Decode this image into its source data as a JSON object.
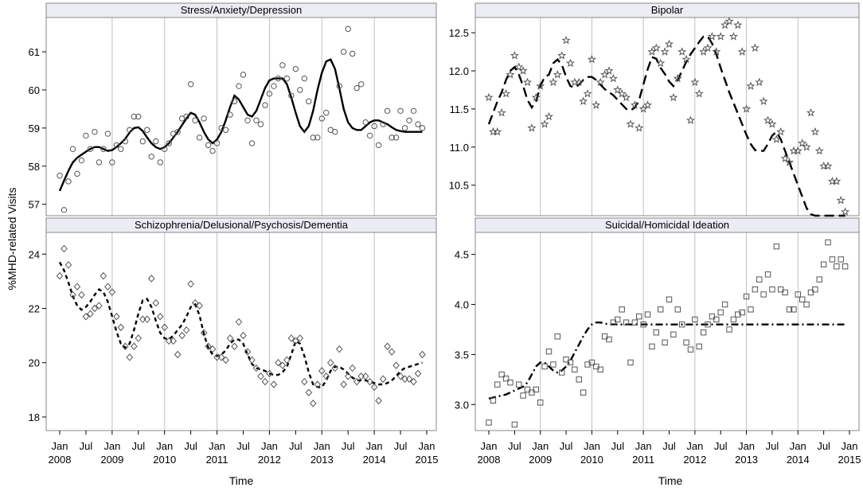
{
  "figure": {
    "ylabel": "%MHD-related Visits",
    "xlabel": "Time"
  },
  "x_ticks": {
    "months": [
      "Jan",
      "Jul",
      "Jan",
      "Jul",
      "Jan",
      "Jul",
      "Jan",
      "Jul",
      "Jan",
      "Jul",
      "Jan",
      "Jul",
      "Jan",
      "Jul",
      "Jan"
    ],
    "years": [
      "2008",
      "2009",
      "2010",
      "2011",
      "2012",
      "2013",
      "2014",
      "2015"
    ]
  },
  "colors": {
    "line": "#000000",
    "marker": "#555555",
    "grid": "#c0c0c0",
    "header": "#ececf5",
    "frame": "#888888"
  },
  "chart_data": [
    {
      "type": "scatter",
      "title": "Stress/Anxiety/Depression",
      "marker": "circle",
      "linestyle": "solid",
      "yticks": [
        57,
        58,
        59,
        60,
        61
      ],
      "ylim": [
        56.7,
        61.9
      ],
      "points": [
        57.75,
        56.85,
        57.6,
        58.45,
        57.8,
        58.15,
        58.8,
        58.45,
        58.9,
        58.1,
        58.45,
        58.85,
        58.1,
        58.55,
        58.45,
        58.65,
        58.95,
        59.3,
        59.3,
        58.65,
        58.95,
        58.25,
        58.65,
        58.1,
        58.45,
        58.6,
        58.85,
        58.9,
        59.25,
        59.3,
        60.15,
        59.2,
        58.75,
        59.25,
        58.55,
        58.4,
        58.6,
        59.0,
        58.95,
        59.35,
        59.7,
        60.1,
        60.4,
        59.2,
        58.6,
        59.2,
        59.1,
        59.6,
        59.9,
        60.1,
        60.3,
        60.65,
        60.3,
        59.85,
        60.55,
        60.0,
        60.3,
        59.7,
        58.75,
        58.75,
        59.25,
        59.4,
        58.95,
        58.9,
        60.1,
        61.0,
        61.6,
        60.95,
        60.05,
        60.15,
        59.15,
        58.8,
        59.05,
        58.55,
        59.1,
        59.45,
        58.75,
        58.75,
        59.45,
        59.0,
        59.2,
        59.45,
        59.1,
        59.0
      ],
      "fit": [
        57.35,
        57.62,
        57.88,
        58.1,
        58.22,
        58.3,
        58.38,
        58.45,
        58.5,
        58.5,
        58.45,
        58.4,
        58.42,
        58.5,
        58.6,
        58.72,
        58.88,
        59.0,
        59.02,
        58.92,
        58.75,
        58.6,
        58.5,
        58.45,
        58.5,
        58.6,
        58.75,
        58.9,
        59.08,
        59.25,
        59.4,
        59.35,
        59.15,
        58.9,
        58.7,
        58.6,
        58.7,
        58.9,
        59.2,
        59.55,
        59.85,
        59.75,
        59.55,
        59.35,
        59.3,
        59.45,
        59.75,
        60.05,
        60.25,
        60.3,
        60.3,
        60.3,
        60.15,
        59.8,
        59.4,
        59.05,
        58.9,
        59.05,
        59.45,
        60.0,
        60.45,
        60.75,
        60.8,
        60.55,
        60.05,
        59.5,
        59.15,
        59.0,
        58.95,
        58.95,
        59.05,
        59.15,
        59.2,
        59.2,
        59.15,
        59.1,
        59.02,
        58.95,
        58.92,
        58.9,
        58.9,
        58.9,
        58.9,
        58.9
      ]
    },
    {
      "type": "scatter",
      "title": "Bipolar",
      "marker": "star",
      "linestyle": "longdash",
      "yticks": [
        10.5,
        11.0,
        11.5,
        12.0,
        12.5
      ],
      "ylim": [
        10.1,
        12.7
      ],
      "points": [
        11.65,
        11.2,
        11.2,
        11.45,
        11.7,
        11.95,
        12.2,
        12.05,
        12.0,
        11.85,
        11.25,
        11.65,
        11.8,
        11.3,
        11.4,
        11.85,
        11.95,
        12.2,
        12.4,
        12.1,
        11.85,
        11.85,
        11.6,
        11.7,
        12.15,
        11.55,
        11.85,
        11.95,
        12.0,
        11.9,
        11.75,
        11.7,
        11.65,
        11.3,
        11.55,
        11.25,
        11.5,
        11.55,
        12.25,
        12.3,
        12.1,
        12.25,
        12.35,
        11.65,
        11.9,
        12.25,
        12.15,
        11.35,
        11.85,
        11.7,
        12.25,
        12.3,
        12.45,
        12.25,
        12.45,
        12.6,
        12.65,
        12.45,
        12.6,
        12.25,
        11.5,
        11.8,
        12.3,
        11.85,
        11.6,
        11.35,
        11.3,
        11.1,
        11.2,
        10.85,
        10.8,
        10.95,
        10.95,
        11.05,
        11.0,
        11.45,
        11.2,
        10.95,
        10.75,
        10.75,
        10.55,
        10.55,
        10.3,
        10.15
      ],
      "fit": [
        11.3,
        11.45,
        11.6,
        11.72,
        11.88,
        12.0,
        12.05,
        11.95,
        11.8,
        11.62,
        11.52,
        11.6,
        11.8,
        11.92,
        11.95,
        12.1,
        12.15,
        12.08,
        11.92,
        11.8,
        11.78,
        11.82,
        11.88,
        11.92,
        11.92,
        11.88,
        11.82,
        11.76,
        11.72,
        11.68,
        11.62,
        11.56,
        11.5,
        11.48,
        11.52,
        11.62,
        11.82,
        12.02,
        12.18,
        12.16,
        12.04,
        11.96,
        11.86,
        11.8,
        11.88,
        12.0,
        12.12,
        12.22,
        12.3,
        12.38,
        12.45,
        12.45,
        12.36,
        12.22,
        12.04,
        11.88,
        11.72,
        11.58,
        11.44,
        11.3,
        11.16,
        11.04,
        10.96,
        10.95,
        10.95,
        11.04,
        11.15,
        11.2,
        11.1,
        10.95,
        10.8,
        10.65,
        10.5,
        10.35,
        10.2,
        10.12,
        10.1,
        10.1,
        10.1,
        10.1,
        10.1,
        10.1,
        10.1,
        10.1
      ]
    },
    {
      "type": "scatter",
      "title": "Schizophrenia/Delusional/Psychosis/Dementia",
      "marker": "diamond",
      "linestyle": "dashed",
      "yticks": [
        18,
        20,
        22,
        24
      ],
      "ylim": [
        17.5,
        24.8
      ],
      "points": [
        23.2,
        24.2,
        23.6,
        22.5,
        22.8,
        22.5,
        21.7,
        21.8,
        22.0,
        22.1,
        23.2,
        22.8,
        22.6,
        21.7,
        21.3,
        20.6,
        20.2,
        20.6,
        20.9,
        21.6,
        21.6,
        23.1,
        22.2,
        21.7,
        21.3,
        20.8,
        20.8,
        20.3,
        21.0,
        21.2,
        22.9,
        22.2,
        22.1,
        21.1,
        20.6,
        20.5,
        20.2,
        20.2,
        20.1,
        20.9,
        20.6,
        21.5,
        21.0,
        20.4,
        20.1,
        19.8,
        19.5,
        19.3,
        19.6,
        19.2,
        20.0,
        19.9,
        20.1,
        20.9,
        20.8,
        20.9,
        19.3,
        18.9,
        18.5,
        19.2,
        19.7,
        19.5,
        20.0,
        19.8,
        20.5,
        19.2,
        19.5,
        19.8,
        19.3,
        19.5,
        19.5,
        19.3,
        19.1,
        18.6,
        19.4,
        20.6,
        20.4,
        19.9,
        19.5,
        19.4,
        19.4,
        19.3,
        19.6,
        20.3
      ],
      "fit": [
        23.7,
        23.4,
        22.95,
        22.45,
        22.1,
        21.95,
        22.05,
        22.25,
        22.5,
        22.7,
        22.6,
        22.25,
        21.7,
        21.15,
        20.7,
        20.55,
        20.7,
        21.2,
        21.8,
        22.3,
        22.35,
        22.05,
        21.55,
        21.1,
        20.9,
        20.85,
        21.0,
        21.2,
        21.4,
        21.7,
        22.05,
        22.15,
        21.75,
        21.05,
        20.55,
        20.3,
        20.25,
        20.3,
        20.45,
        20.7,
        20.85,
        20.85,
        20.7,
        20.3,
        19.95,
        19.8,
        19.75,
        19.7,
        19.6,
        19.55,
        19.55,
        19.65,
        19.85,
        20.3,
        20.8,
        20.7,
        20.25,
        19.65,
        19.2,
        19.1,
        19.1,
        19.35,
        19.7,
        19.85,
        19.85,
        19.75,
        19.6,
        19.45,
        19.35,
        19.35,
        19.35,
        19.3,
        19.25,
        19.2,
        19.2,
        19.25,
        19.35,
        19.5,
        19.7,
        19.8,
        19.85,
        19.9,
        19.95,
        20.0
      ]
    },
    {
      "type": "scatter",
      "title": "Suicidal/Homicidal Ideation",
      "marker": "square",
      "linestyle": "dashdot",
      "yticks": [
        3.0,
        3.5,
        4.0,
        4.5
      ],
      "ylim": [
        2.74,
        4.72
      ],
      "points": [
        2.82,
        3.04,
        3.2,
        3.3,
        3.26,
        3.22,
        2.8,
        3.2,
        3.09,
        3.15,
        3.12,
        3.15,
        3.02,
        3.38,
        3.53,
        3.4,
        3.68,
        3.32,
        3.45,
        3.42,
        3.35,
        3.25,
        3.12,
        3.4,
        3.42,
        3.38,
        3.35,
        3.68,
        3.65,
        3.82,
        3.85,
        3.95,
        3.82,
        3.42,
        3.82,
        3.88,
        3.8,
        3.9,
        3.58,
        3.72,
        3.95,
        3.62,
        4.05,
        3.7,
        3.95,
        3.8,
        3.62,
        3.55,
        3.85,
        3.58,
        3.72,
        3.8,
        3.88,
        3.85,
        3.92,
        4.0,
        3.75,
        3.85,
        3.9,
        3.92,
        4.08,
        3.95,
        4.15,
        4.25,
        4.1,
        4.3,
        4.15,
        4.58,
        4.15,
        4.12,
        3.95,
        3.95,
        4.1,
        4.05,
        4.0,
        4.12,
        4.15,
        4.25,
        4.4,
        4.62,
        4.45,
        4.38,
        4.45,
        4.38
      ],
      "fit": [
        3.06,
        3.07,
        3.08,
        3.09,
        3.1,
        3.12,
        3.14,
        3.16,
        3.18,
        3.22,
        3.3,
        3.38,
        3.42,
        3.42,
        3.38,
        3.34,
        3.32,
        3.34,
        3.38,
        3.44,
        3.52,
        3.6,
        3.68,
        3.75,
        3.8,
        3.82,
        3.82,
        3.81,
        3.8,
        3.8,
        3.8,
        3.8,
        3.8,
        3.8,
        3.8,
        3.8,
        3.8,
        3.8,
        3.8,
        3.8,
        3.8,
        3.8,
        3.8,
        3.8,
        3.8,
        3.8,
        3.8,
        3.8,
        3.8,
        3.8,
        3.8,
        3.8,
        3.8,
        3.8,
        3.8,
        3.8,
        3.8,
        3.8,
        3.8,
        3.8,
        3.8,
        3.8,
        3.8,
        3.8,
        3.8,
        3.8,
        3.8,
        3.8,
        3.8,
        3.8,
        3.8,
        3.8,
        3.8,
        3.8,
        3.8,
        3.8,
        3.8,
        3.8,
        3.8,
        3.8,
        3.8,
        3.8,
        3.8,
        3.8
      ]
    }
  ]
}
